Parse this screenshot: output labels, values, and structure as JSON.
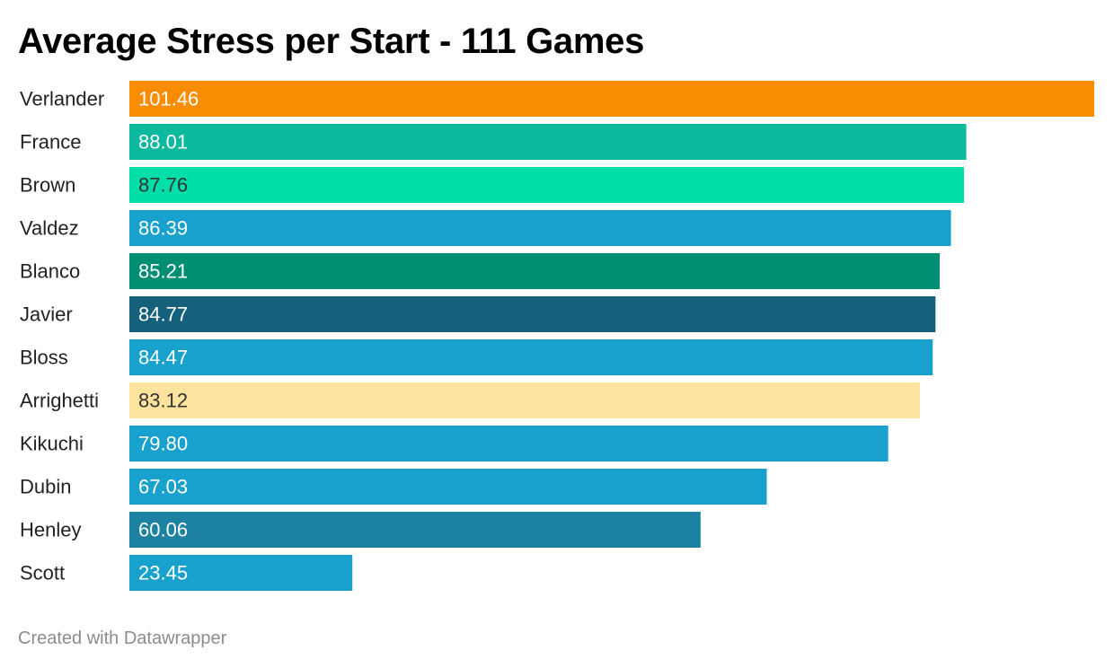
{
  "title": "Average Stress per Start - 111 Games",
  "footer": "Created with Datawrapper",
  "chart_data": {
    "type": "bar",
    "orientation": "horizontal",
    "title": "Average Stress per Start - 111 Games",
    "categories": [
      "Verlander",
      "France",
      "Brown",
      "Valdez",
      "Blanco",
      "Javier",
      "Bloss",
      "Arrighetti",
      "Kikuchi",
      "Dubin",
      "Henley",
      "Scott"
    ],
    "values": [
      101.46,
      88.01,
      87.76,
      86.39,
      85.21,
      84.77,
      84.47,
      83.12,
      79.8,
      67.03,
      60.06,
      23.45
    ],
    "value_labels": [
      "101.46",
      "88.01",
      "87.76",
      "86.39",
      "85.21",
      "84.77",
      "84.47",
      "83.12",
      "79.80",
      "67.03",
      "60.06",
      "23.45"
    ],
    "colors": [
      "#f98c00",
      "#0ab99e",
      "#00dfaa",
      "#18a1cd",
      "#008e73",
      "#15607a",
      "#18a1cd",
      "#fee39f",
      "#18a1cd",
      "#18a1cd",
      "#1d81a2",
      "#18a1cd"
    ],
    "label_colors": [
      "#ffffff",
      "#ffffff",
      "#333333",
      "#ffffff",
      "#ffffff",
      "#ffffff",
      "#ffffff",
      "#333333",
      "#ffffff",
      "#ffffff",
      "#ffffff",
      "#ffffff"
    ],
    "xlim": [
      0,
      101.46
    ],
    "xlabel": "",
    "ylabel": "",
    "grid": false,
    "legend": "none"
  }
}
